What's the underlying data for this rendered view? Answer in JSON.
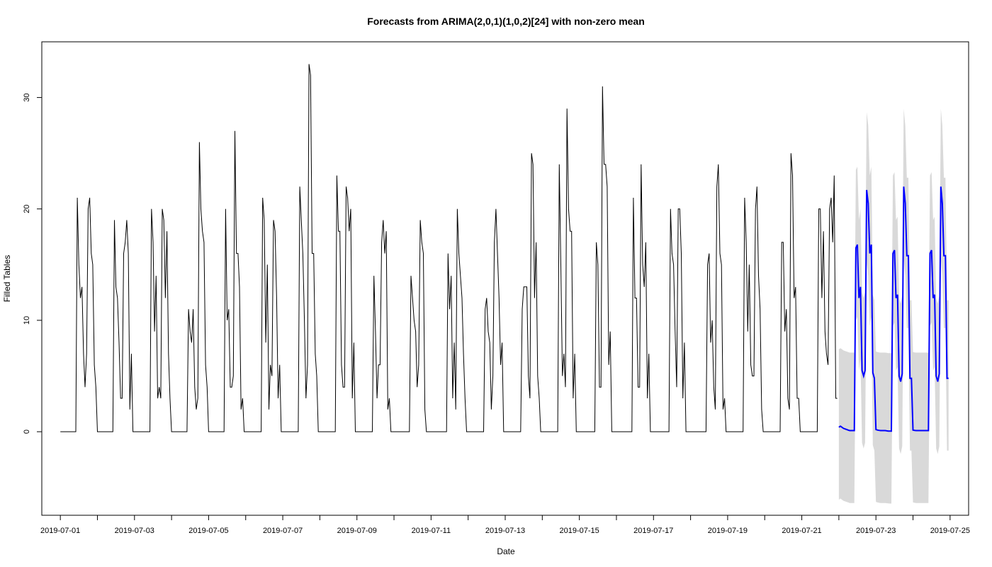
{
  "chart_data": {
    "type": "line",
    "title": "Forecasts from ARIMA(2,0,1)(1,0,2)[24] with non-zero mean",
    "xlabel": "Date",
    "ylabel": "Filled Tables",
    "xlim": [
      "2019-06-30T12:00",
      "2019-07-25T12:00"
    ],
    "ylim": [
      -7.5,
      35
    ],
    "grid": false,
    "x_ticks": [
      "2019-07-01",
      "2019-07-02",
      "2019-07-03",
      "2019-07-04",
      "2019-07-05",
      "2019-07-06",
      "2019-07-07",
      "2019-07-08",
      "2019-07-09",
      "2019-07-10",
      "2019-07-11",
      "2019-07-12",
      "2019-07-13",
      "2019-07-14",
      "2019-07-15",
      "2019-07-16",
      "2019-07-17",
      "2019-07-18",
      "2019-07-19",
      "2019-07-20",
      "2019-07-21",
      "2019-07-22",
      "2019-07-23",
      "2019-07-24",
      "2019-07-25"
    ],
    "x_tick_labels": [
      "2019-07-01",
      "",
      "2019-07-03",
      "",
      "2019-07-05",
      "",
      "2019-07-07",
      "",
      "2019-07-09",
      "",
      "2019-07-11",
      "",
      "2019-07-13",
      "",
      "2019-07-15",
      "",
      "2019-07-17",
      "",
      "2019-07-19",
      "",
      "2019-07-21",
      "",
      "2019-07-23",
      "",
      "2019-07-25"
    ],
    "y_ticks": [
      0,
      10,
      20,
      30
    ],
    "y_tick_labels": [
      "0",
      "10",
      "20",
      "30"
    ],
    "colors": {
      "observed": "#000000",
      "forecast": "#0000ff",
      "interval": "#d9d9d9"
    },
    "observed": {
      "start": "2019-07-01T00:00",
      "step_hours": 1,
      "hourly_pattern_days": [
        {
          "date": "2019-07-01",
          "hours_11_to_23": [
            21,
            15,
            12,
            13,
            7,
            4,
            7,
            20,
            21,
            16,
            15,
            6,
            4
          ]
        },
        {
          "date": "2019-07-02",
          "hours_11_to_23": [
            19,
            13,
            12,
            8,
            3,
            3,
            16,
            17,
            19,
            16,
            2,
            7,
            0
          ]
        },
        {
          "date": "2019-07-03",
          "hours_11_to_23": [
            20,
            17,
            9,
            14,
            3,
            4,
            3,
            20,
            19,
            12,
            18,
            7,
            3
          ]
        },
        {
          "date": "2019-07-04",
          "hours_11_to_23": [
            11,
            9,
            8,
            11,
            4,
            2,
            3,
            26,
            20,
            18,
            17,
            6,
            4
          ]
        },
        {
          "date": "2019-07-05",
          "hours_11_to_23": [
            20,
            10,
            11,
            4,
            4,
            5,
            27,
            16,
            16,
            13,
            2,
            3,
            0
          ]
        },
        {
          "date": "2019-07-06",
          "hours_11_to_23": [
            21,
            19,
            8,
            15,
            2,
            6,
            5,
            19,
            18,
            12,
            3,
            6,
            0
          ]
        },
        {
          "date": "2019-07-07",
          "hours_11_to_23": [
            22,
            19,
            16,
            10,
            3,
            6,
            33,
            32,
            16,
            16,
            7,
            5,
            0
          ]
        },
        {
          "date": "2019-07-08",
          "hours_11_to_23": [
            23,
            18,
            18,
            6,
            4,
            4,
            22,
            21,
            18,
            20,
            3,
            8,
            0
          ]
        },
        {
          "date": "2019-07-09",
          "hours_11_to_23": [
            14,
            9,
            3,
            6,
            6,
            17,
            19,
            16,
            18,
            2,
            3,
            0,
            0
          ]
        },
        {
          "date": "2019-07-10",
          "hours_11_to_23": [
            14,
            12,
            10,
            9,
            4,
            6,
            19,
            17,
            16,
            2,
            0,
            0,
            0
          ]
        },
        {
          "date": "2019-07-11",
          "hours_11_to_23": [
            16,
            11,
            14,
            3,
            8,
            2,
            20,
            16,
            14,
            12,
            7,
            3,
            0
          ]
        },
        {
          "date": "2019-07-12",
          "hours_11_to_23": [
            11,
            12,
            9,
            8,
            2,
            5,
            17,
            20,
            16,
            12,
            6,
            8,
            0
          ]
        },
        {
          "date": "2019-07-13",
          "hours_11_to_23": [
            11,
            13,
            13,
            13,
            5,
            3,
            25,
            24,
            12,
            17,
            5,
            3,
            0
          ]
        },
        {
          "date": "2019-07-14",
          "hours_11_to_23": [
            24,
            15,
            5,
            7,
            4,
            29,
            20,
            18,
            18,
            3,
            7,
            0,
            0
          ]
        },
        {
          "date": "2019-07-15",
          "hours_11_to_23": [
            17,
            15,
            4,
            4,
            31,
            24,
            24,
            22,
            6,
            9,
            0,
            0,
            0
          ]
        },
        {
          "date": "2019-07-16",
          "hours_11_to_23": [
            21,
            12,
            12,
            4,
            4,
            24,
            15,
            13,
            17,
            3,
            7,
            0,
            0
          ]
        },
        {
          "date": "2019-07-17",
          "hours_11_to_23": [
            20,
            16,
            15,
            9,
            4,
            20,
            20,
            16,
            3,
            8,
            0,
            0,
            0
          ]
        },
        {
          "date": "2019-07-18",
          "hours_11_to_23": [
            15,
            16,
            8,
            10,
            4,
            2,
            22,
            24,
            16,
            15,
            2,
            3,
            0
          ]
        },
        {
          "date": "2019-07-19",
          "hours_11_to_23": [
            21,
            17,
            9,
            15,
            6,
            5,
            5,
            20,
            22,
            14,
            11,
            2,
            0
          ]
        },
        {
          "date": "2019-07-20",
          "hours_11_to_23": [
            17,
            17,
            9,
            11,
            3,
            2,
            25,
            23,
            12,
            13,
            3,
            3,
            0
          ]
        },
        {
          "date": "2019-07-21",
          "hours_11_to_23": [
            20,
            20,
            12,
            18,
            9,
            7,
            6,
            20,
            21,
            17,
            23,
            3,
            3
          ]
        }
      ],
      "zero_hours": "0-10 each day"
    },
    "forecast": {
      "start": "2019-07-22T00:00",
      "step_hours": 1,
      "day_profile": [
        0.4,
        0.3,
        0.2,
        0.15,
        0.1,
        0.1,
        0.1,
        0.1,
        0.1,
        0.1,
        0.1,
        16.5,
        16.8,
        12,
        13,
        5.5,
        5,
        5.5,
        21.5,
        20,
        16,
        16.8,
        5.3,
        4.8
      ],
      "mean": [
        0.4,
        0.5,
        0.4,
        0.3,
        0.25,
        0.2,
        0.15,
        0.1,
        0.1,
        0.1,
        0.1,
        16.5,
        16.8,
        12,
        13,
        5.5,
        5,
        5.5,
        21.7,
        20.5,
        16,
        16.8,
        5.3,
        4.8,
        0.2,
        0.15,
        0.12,
        0.1,
        0.1,
        0.1,
        0.1,
        0.08,
        0.06,
        0.05,
        0.05,
        16,
        16.3,
        12,
        12.3,
        5,
        4.5,
        5.2,
        22,
        20.5,
        15.8,
        15.8,
        4.8,
        4.8,
        0.15,
        0.12,
        0.1,
        0.1,
        0.1,
        0.1,
        0.1,
        0.1,
        0.1,
        0.1,
        0.1,
        16,
        16.3,
        12,
        12.3,
        5,
        4.5,
        5.2,
        22,
        20.5,
        15.8,
        15.8,
        4.8,
        4.8
      ],
      "lo95_offset": -6.5,
      "hi95_offset": 7,
      "intervals": {
        "lo95": [
          -6.0,
          -6.7
        ],
        "hi95": [
          7.2,
          28.5
        ]
      }
    }
  }
}
